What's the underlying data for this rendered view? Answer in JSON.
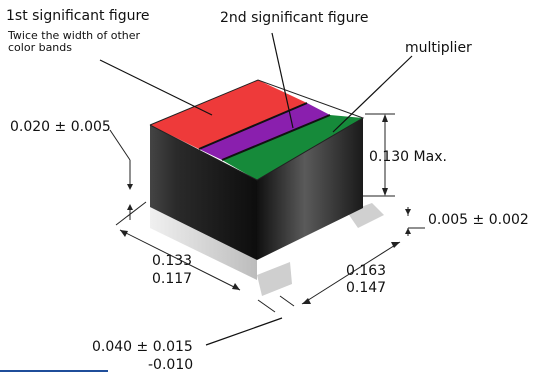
{
  "labels": {
    "first_sig": "1st significant figure",
    "first_sig_note_line1": "Twice the width of other",
    "first_sig_note_line2": "color bands",
    "second_sig": "2nd significant figure",
    "multiplier": "multiplier",
    "band_thickness": "0.020 ± 0.005",
    "height_max": "0.130 Max.",
    "terminal_gap": "0.005 ± 0.002",
    "depth_top": "0.133",
    "depth_bottom": "0.117",
    "length_top": "0.163",
    "length_bottom": "0.147",
    "terminal_width_top": "0.040 ± 0.015",
    "terminal_width_bottom": "-0.010"
  },
  "colors": {
    "band_first": "#ee3a3a",
    "band_second": "#8a1fae",
    "multiplier": "#168a3a",
    "body_dark": "#1e1e1e",
    "terminal": "#d8d8d8",
    "rule": "#1f4e9a"
  }
}
